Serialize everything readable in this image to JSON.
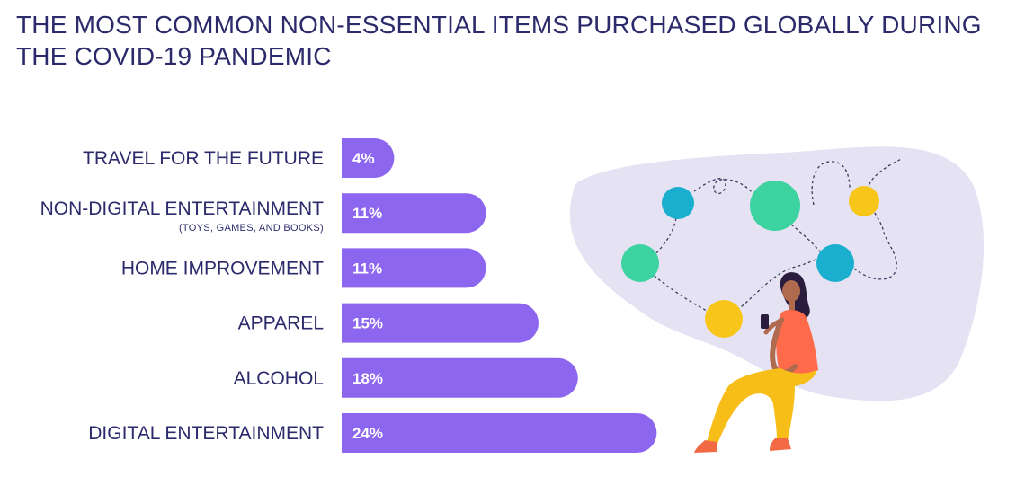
{
  "title": {
    "line1": "THE MOST COMMON NON-ESSENTIAL ITEMS PURCHASED GLOBALLY DURING",
    "line2": "THE COVID-19 PANDEMIC"
  },
  "colors": {
    "title": "#2c2a6b",
    "bar": "#8c66ee",
    "blob": "#e5e2f3",
    "teal": "#1aaecf",
    "green": "#3dd3a1",
    "yellow": "#f8c51a",
    "skin": "#b06a4e",
    "hair": "#2b1c3d",
    "shirt": "#ff6b4a",
    "pants": "#f7be19",
    "shoes": "#f26a43"
  },
  "chart_data": {
    "type": "bar",
    "orientation": "horizontal",
    "categories": [
      "TRAVEL FOR THE FUTURE",
      "NON-DIGITAL ENTERTAINMENT",
      "HOME IMPROVEMENT",
      "APPAREL",
      "ALCOHOL",
      "DIGITAL ENTERTAINMENT"
    ],
    "sublabels": [
      "",
      "(TOYS, GAMES, AND BOOKS)",
      "",
      "",
      "",
      ""
    ],
    "values": [
      4,
      11,
      11,
      15,
      18,
      24
    ],
    "value_labels": [
      "4%",
      "11%",
      "11%",
      "15%",
      "18%",
      "24%"
    ],
    "unit": "%",
    "xlim": [
      0,
      24
    ],
    "grid": false,
    "legend": "none"
  },
  "illustration": {
    "icons": [
      "network-diagram-icon",
      "woman-with-phone-icon"
    ]
  }
}
